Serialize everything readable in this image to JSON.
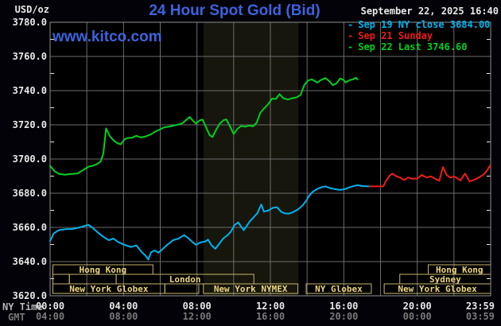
{
  "header": {
    "unit": "USD/oz",
    "title": "24 Hour Spot Gold (Bid)",
    "datetime": "September 22, 2025 16:40",
    "watermark": "www.kitco.com"
  },
  "axis_corner": {
    "ny_time": "NY Time",
    "gmt": "GMT"
  },
  "legend": {
    "items": [
      {
        "marker": "-",
        "label": "Sep 19 NY close 3684.00",
        "color": "#00b2ee"
      },
      {
        "marker": "-",
        "label": "Sep 21 Sunday",
        "color": "#ef1c1c"
      },
      {
        "marker": "-",
        "label": "Sep 22 Last 3746.60",
        "color": "#00d01e"
      }
    ]
  },
  "colors": {
    "background": "#020208",
    "plot_background": "#000000",
    "nymex_band": "#16160d",
    "grid": "#6d6d6d",
    "border": "#8f8f8f",
    "tick_text": "#e9e9e9",
    "muted_text": "#7a7a7a",
    "accent_blue": "#3c63dc",
    "session_border": "#c6b56c",
    "session_text": "#ecd67e",
    "series_sep19": "#00b2ee",
    "series_sep21": "#ef1c1c",
    "series_sep22": "#00d01e"
  },
  "chart_data": {
    "type": "line",
    "title": "24 Hour Spot Gold (Bid)",
    "ylabel": "USD/oz",
    "y_min": 3620,
    "y_max": 3780,
    "y_tick_step": 20,
    "y_minor_step": 10,
    "x_range_hours": [
      0,
      24
    ],
    "x_gridline_every_hours": 2,
    "grid": true,
    "legend_position": "top-right",
    "nymex_floor_band_hours": [
      8.36,
      13.52
    ],
    "x_ticks": [
      {
        "hour": 0,
        "ny_time": "00:00",
        "gmt": "04:00",
        "align": "middle"
      },
      {
        "hour": 4,
        "ny_time": "04:00",
        "gmt": "08:00",
        "align": "middle"
      },
      {
        "hour": 8,
        "ny_time": "08:00",
        "gmt": "12:00",
        "align": "middle"
      },
      {
        "hour": 12,
        "ny_time": "12:00",
        "gmt": "16:00",
        "align": "middle"
      },
      {
        "hour": 16,
        "ny_time": "16:00",
        "gmt": "20:00",
        "align": "middle"
      },
      {
        "hour": 20,
        "ny_time": "20:00",
        "gmt": "00:00",
        "align": "middle"
      },
      {
        "hour": 23.983,
        "ny_time": "23:59",
        "gmt": "03:59",
        "align": "end"
      }
    ],
    "series": [
      {
        "name": "Sep 19 NY close",
        "close": 3684.0,
        "color": "#00b2ee",
        "points": [
          [
            0,
            3652
          ],
          [
            0.2,
            3656.5
          ],
          [
            0.5,
            3658.5
          ],
          [
            0.9,
            3659
          ],
          [
            1.2,
            3659
          ],
          [
            1.6,
            3660
          ],
          [
            1.9,
            3661
          ],
          [
            2.1,
            3661.5
          ],
          [
            2.35,
            3659.5
          ],
          [
            2.6,
            3657
          ],
          [
            2.9,
            3654.5
          ],
          [
            3.2,
            3652.5
          ],
          [
            3.45,
            3653.5
          ],
          [
            3.7,
            3651.5
          ],
          [
            4.0,
            3650
          ],
          [
            4.4,
            3648.5
          ],
          [
            4.7,
            3649.5
          ],
          [
            5.0,
            3645.5
          ],
          [
            5.2,
            3643.5
          ],
          [
            5.35,
            3641.2
          ],
          [
            5.5,
            3645.5
          ],
          [
            5.7,
            3646.5
          ],
          [
            5.9,
            3645.2
          ],
          [
            6.1,
            3647
          ],
          [
            6.4,
            3650
          ],
          [
            6.7,
            3652.5
          ],
          [
            7.0,
            3653.5
          ],
          [
            7.3,
            3655.5
          ],
          [
            7.5,
            3654
          ],
          [
            7.75,
            3651.5
          ],
          [
            7.95,
            3649.8
          ],
          [
            8.2,
            3651.3
          ],
          [
            8.45,
            3651.7
          ],
          [
            8.6,
            3652.9
          ],
          [
            8.8,
            3649.5
          ],
          [
            9.0,
            3647.5
          ],
          [
            9.25,
            3651
          ],
          [
            9.45,
            3653.7
          ],
          [
            9.65,
            3655.3
          ],
          [
            9.85,
            3657.6
          ],
          [
            10.05,
            3661.4
          ],
          [
            10.25,
            3663
          ],
          [
            10.4,
            3660.5
          ],
          [
            10.55,
            3658.4
          ],
          [
            10.75,
            3661.5
          ],
          [
            10.9,
            3663.8
          ],
          [
            11.1,
            3666.1
          ],
          [
            11.3,
            3668.4
          ],
          [
            11.5,
            3673.4
          ],
          [
            11.65,
            3669.2
          ],
          [
            11.9,
            3670
          ],
          [
            12.15,
            3671.5
          ],
          [
            12.35,
            3671.8
          ],
          [
            12.6,
            3669
          ],
          [
            12.8,
            3668.2
          ],
          [
            13.0,
            3668
          ],
          [
            13.25,
            3669
          ],
          [
            13.5,
            3670.5
          ],
          [
            13.75,
            3672.8
          ],
          [
            13.95,
            3675.5
          ],
          [
            14.1,
            3678.4
          ],
          [
            14.3,
            3680.8
          ],
          [
            14.55,
            3682.5
          ],
          [
            14.8,
            3683.6
          ],
          [
            15.0,
            3684
          ],
          [
            15.25,
            3683
          ],
          [
            15.5,
            3682.4
          ],
          [
            15.75,
            3682
          ],
          [
            16.0,
            3682.2
          ],
          [
            16.25,
            3683.2
          ],
          [
            16.5,
            3684.1
          ],
          [
            16.75,
            3684.7
          ],
          [
            17.0,
            3684.2
          ],
          [
            17.4,
            3684
          ]
        ]
      },
      {
        "name": "Sep 21 Sunday",
        "color": "#ef1c1c",
        "points": [
          [
            17.4,
            3684
          ],
          [
            18.15,
            3684
          ],
          [
            18.3,
            3687.2
          ],
          [
            18.5,
            3690.3
          ],
          [
            18.65,
            3691.5
          ],
          [
            18.85,
            3690
          ],
          [
            19.05,
            3689.2
          ],
          [
            19.3,
            3687.7
          ],
          [
            19.5,
            3689.2
          ],
          [
            19.75,
            3688.4
          ],
          [
            20.0,
            3688.6
          ],
          [
            20.25,
            3690.7
          ],
          [
            20.5,
            3689.2
          ],
          [
            20.75,
            3689.8
          ],
          [
            21.0,
            3688.3
          ],
          [
            21.2,
            3687.3
          ],
          [
            21.4,
            3695.3
          ],
          [
            21.6,
            3690.7
          ],
          [
            21.8,
            3689.1
          ],
          [
            22.0,
            3689.8
          ],
          [
            22.2,
            3688.6
          ],
          [
            22.35,
            3687.4
          ],
          [
            22.6,
            3691.5
          ],
          [
            22.85,
            3686.9
          ],
          [
            23.1,
            3687.8
          ],
          [
            23.35,
            3689.2
          ],
          [
            23.6,
            3690.8
          ],
          [
            23.8,
            3693.2
          ],
          [
            23.97,
            3696.2
          ]
        ]
      },
      {
        "name": "Sep 22",
        "last": 3746.6,
        "color": "#00d01e",
        "points": [
          [
            0,
            3696
          ],
          [
            0.25,
            3692.8
          ],
          [
            0.5,
            3691.3
          ],
          [
            0.8,
            3690.8
          ],
          [
            1.1,
            3691.2
          ],
          [
            1.5,
            3691.6
          ],
          [
            1.8,
            3693.6
          ],
          [
            2.1,
            3695.6
          ],
          [
            2.3,
            3696
          ],
          [
            2.55,
            3697
          ],
          [
            2.75,
            3698.5
          ],
          [
            2.9,
            3703
          ],
          [
            3.05,
            3717.9
          ],
          [
            3.25,
            3713.5
          ],
          [
            3.45,
            3711
          ],
          [
            3.65,
            3709.3
          ],
          [
            3.85,
            3708.6
          ],
          [
            4.05,
            3711.5
          ],
          [
            4.2,
            3712.3
          ],
          [
            4.45,
            3712.4
          ],
          [
            4.7,
            3713.6
          ],
          [
            4.95,
            3712.6
          ],
          [
            5.2,
            3713.2
          ],
          [
            5.5,
            3714.5
          ],
          [
            5.75,
            3716.2
          ],
          [
            6.0,
            3717.4
          ],
          [
            6.2,
            3718.5
          ],
          [
            6.45,
            3718.9
          ],
          [
            6.7,
            3719.5
          ],
          [
            6.95,
            3720.1
          ],
          [
            7.2,
            3720.9
          ],
          [
            7.45,
            3723.2
          ],
          [
            7.6,
            3724.6
          ],
          [
            7.8,
            3722.2
          ],
          [
            7.95,
            3720.8
          ],
          [
            8.15,
            3722.6
          ],
          [
            8.3,
            3723.1
          ],
          [
            8.5,
            3718.5
          ],
          [
            8.7,
            3713.8
          ],
          [
            8.85,
            3712.9
          ],
          [
            9.05,
            3717.2
          ],
          [
            9.25,
            3720.8
          ],
          [
            9.45,
            3722.7
          ],
          [
            9.6,
            3723.2
          ],
          [
            9.8,
            3719.2
          ],
          [
            10.0,
            3714.6
          ],
          [
            10.2,
            3717.6
          ],
          [
            10.4,
            3719.3
          ],
          [
            10.65,
            3719
          ],
          [
            10.85,
            3719.6
          ],
          [
            11.05,
            3719.1
          ],
          [
            11.25,
            3721.2
          ],
          [
            11.45,
            3727
          ],
          [
            11.65,
            3729.6
          ],
          [
            11.85,
            3731.7
          ],
          [
            12.1,
            3735.4
          ],
          [
            12.3,
            3735.1
          ],
          [
            12.5,
            3738
          ],
          [
            12.7,
            3735.6
          ],
          [
            12.95,
            3734.8
          ],
          [
            13.2,
            3735.6
          ],
          [
            13.45,
            3736.2
          ],
          [
            13.65,
            3737.6
          ],
          [
            13.85,
            3743.3
          ],
          [
            14.05,
            3745.9
          ],
          [
            14.25,
            3746.6
          ],
          [
            14.45,
            3745.4
          ],
          [
            14.55,
            3744.7
          ],
          [
            14.75,
            3746.2
          ],
          [
            15.0,
            3747.4
          ],
          [
            15.2,
            3745.6
          ],
          [
            15.4,
            3743.2
          ],
          [
            15.6,
            3744.3
          ],
          [
            15.8,
            3747.1
          ],
          [
            16.0,
            3746.2
          ],
          [
            16.1,
            3744.8
          ],
          [
            16.3,
            3746.1
          ],
          [
            16.5,
            3746.6
          ],
          [
            16.65,
            3747.6
          ],
          [
            16.75,
            3746.6
          ]
        ]
      }
    ],
    "market_sessions": [
      {
        "row": 0,
        "start_hour": 0.15,
        "end_hour": 5.6,
        "label": "Hong Kong"
      },
      {
        "row": 0,
        "start_hour": 20.6,
        "end_hour": 24,
        "label": "Hong Kong"
      },
      {
        "row": 1,
        "start_hour": 0.15,
        "end_hour": 1.05,
        "label": ""
      },
      {
        "row": 1,
        "start_hour": 1.05,
        "end_hour": 3.6,
        "label": ""
      },
      {
        "row": 1,
        "start_hour": 3.6,
        "end_hour": 11.1,
        "label": "London"
      },
      {
        "row": 1,
        "start_hour": 19.05,
        "end_hour": 24,
        "label": "Sydney"
      },
      {
        "row": 2,
        "start_hour": 0.15,
        "end_hour": 6.25,
        "label": "New York Globex"
      },
      {
        "row": 2,
        "start_hour": 6.25,
        "end_hour": 8.1,
        "label": ""
      },
      {
        "row": 2,
        "start_hour": 8.35,
        "end_hour": 13.5,
        "label": "New York NYMEX"
      },
      {
        "row": 2,
        "start_hour": 13.95,
        "end_hour": 17.5,
        "label": "NY Globex"
      },
      {
        "row": 2,
        "start_hour": 18.2,
        "end_hour": 24,
        "label": "New York Globex"
      }
    ]
  }
}
